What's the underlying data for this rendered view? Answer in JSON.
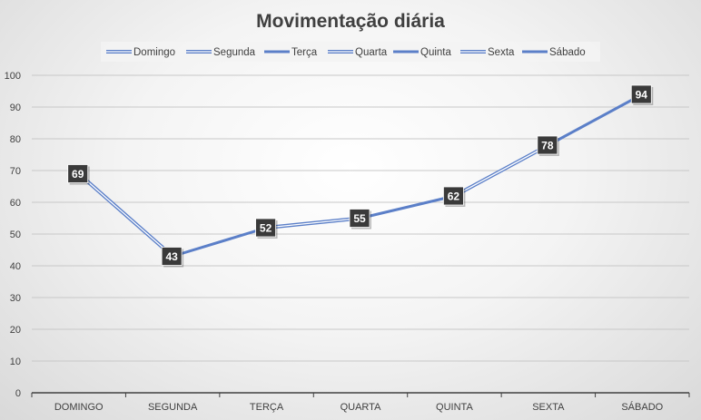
{
  "chart_data": {
    "type": "line",
    "title": "Movimentação diária",
    "categories": [
      "DOMINGO",
      "SEGUNDA",
      "TERÇA",
      "QUARTA",
      "QUINTA",
      "SEXTA",
      "SÁBADO"
    ],
    "values": [
      69,
      43,
      52,
      55,
      62,
      78,
      94
    ],
    "legend": [
      "Domingo",
      "Segunda",
      "Terça",
      "Quarta",
      "Quinta",
      "Sexta",
      "Sábado"
    ],
    "legend_placement": "top",
    "yticks": [
      0,
      10,
      20,
      30,
      40,
      50,
      60,
      70,
      80,
      90,
      100
    ],
    "ylim": [
      0,
      100
    ],
    "grid": true,
    "data_labels": true,
    "colors": {
      "line": "#5b7fc8",
      "label_bg": "#3a3a3a",
      "label_text": "#ffffff",
      "grid": "#c8c8c8",
      "axis": "#404040"
    }
  }
}
